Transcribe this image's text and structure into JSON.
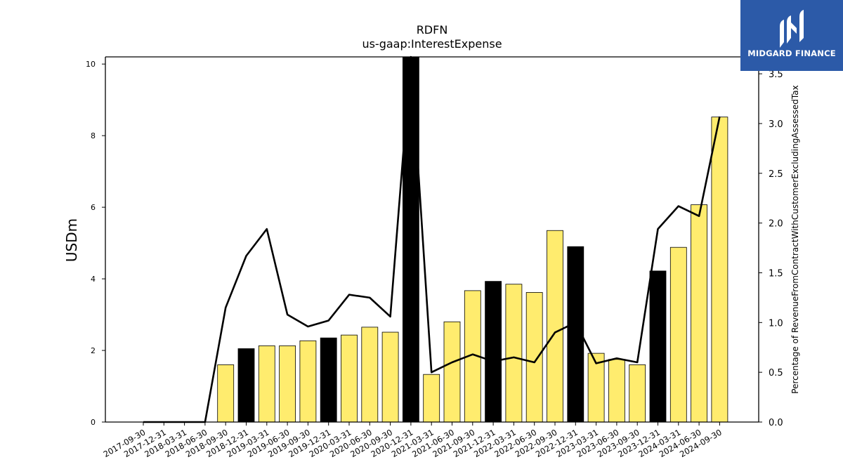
{
  "chart_data": {
    "type": "bar",
    "title": "RDFN",
    "subtitle": "us-gaap:InterestExpense",
    "ylabel": "USDm",
    "ylabel_right": "Percentage of RevenueFromContractWithCustomerExcludingAssessedTax",
    "ylim": [
      0,
      10.2
    ],
    "ylim_right": [
      0,
      3.67
    ],
    "yticks": [
      0,
      2,
      4,
      6,
      8,
      10
    ],
    "yticks_right": [
      "0.0",
      "0.5",
      "1.0",
      "1.5",
      "2.0",
      "2.5",
      "3.0",
      "3.5"
    ],
    "categories": [
      "2017-09-30",
      "2017-12-31",
      "2018-03-31",
      "2018-06-30",
      "2018-09-30",
      "2018-12-31",
      "2019-03-31",
      "2019-06-30",
      "2019-09-30",
      "2019-12-31",
      "2020-03-31",
      "2020-06-30",
      "2020-09-30",
      "2020-12-31",
      "2021-03-31",
      "2021-06-30",
      "2021-09-30",
      "2021-12-31",
      "2022-03-31",
      "2022-06-30",
      "2022-09-30",
      "2022-12-31",
      "2023-03-31",
      "2023-06-30",
      "2023-09-30",
      "2023-12-31",
      "2024-03-31",
      "2024-06-30",
      "2024-09-30"
    ],
    "series": [
      {
        "type": "bar",
        "values": [
          0,
          0,
          0,
          0,
          1.6,
          2.05,
          2.13,
          2.13,
          2.27,
          2.35,
          2.43,
          2.65,
          2.51,
          10.2,
          1.33,
          2.8,
          3.67,
          3.93,
          3.85,
          3.62,
          5.35,
          4.9,
          1.92,
          1.75,
          1.6,
          4.22,
          4.88,
          6.07,
          8.52
        ],
        "fiscal_year_end": [
          false,
          true,
          false,
          false,
          false,
          true,
          false,
          false,
          false,
          true,
          false,
          false,
          false,
          true,
          false,
          false,
          false,
          true,
          false,
          false,
          false,
          true,
          false,
          false,
          false,
          true,
          false,
          false,
          false
        ]
      },
      {
        "type": "line",
        "axis": "right",
        "values": [
          0,
          0,
          0,
          0,
          1.15,
          1.67,
          1.94,
          1.08,
          0.96,
          1.02,
          1.28,
          1.25,
          1.06,
          3.67,
          0.5,
          0.6,
          0.68,
          0.61,
          0.65,
          0.6,
          0.9,
          1.0,
          0.59,
          0.64,
          0.6,
          1.94,
          2.17,
          2.07,
          3.07
        ]
      }
    ],
    "colors": {
      "bar": "#ffec6e",
      "bar_highlight": "#000000",
      "line": "#000000",
      "axis": "#000000"
    },
    "grid": false
  },
  "logo": {
    "text": "MIDGARD FINANCE",
    "background": "#2c5aa8"
  }
}
